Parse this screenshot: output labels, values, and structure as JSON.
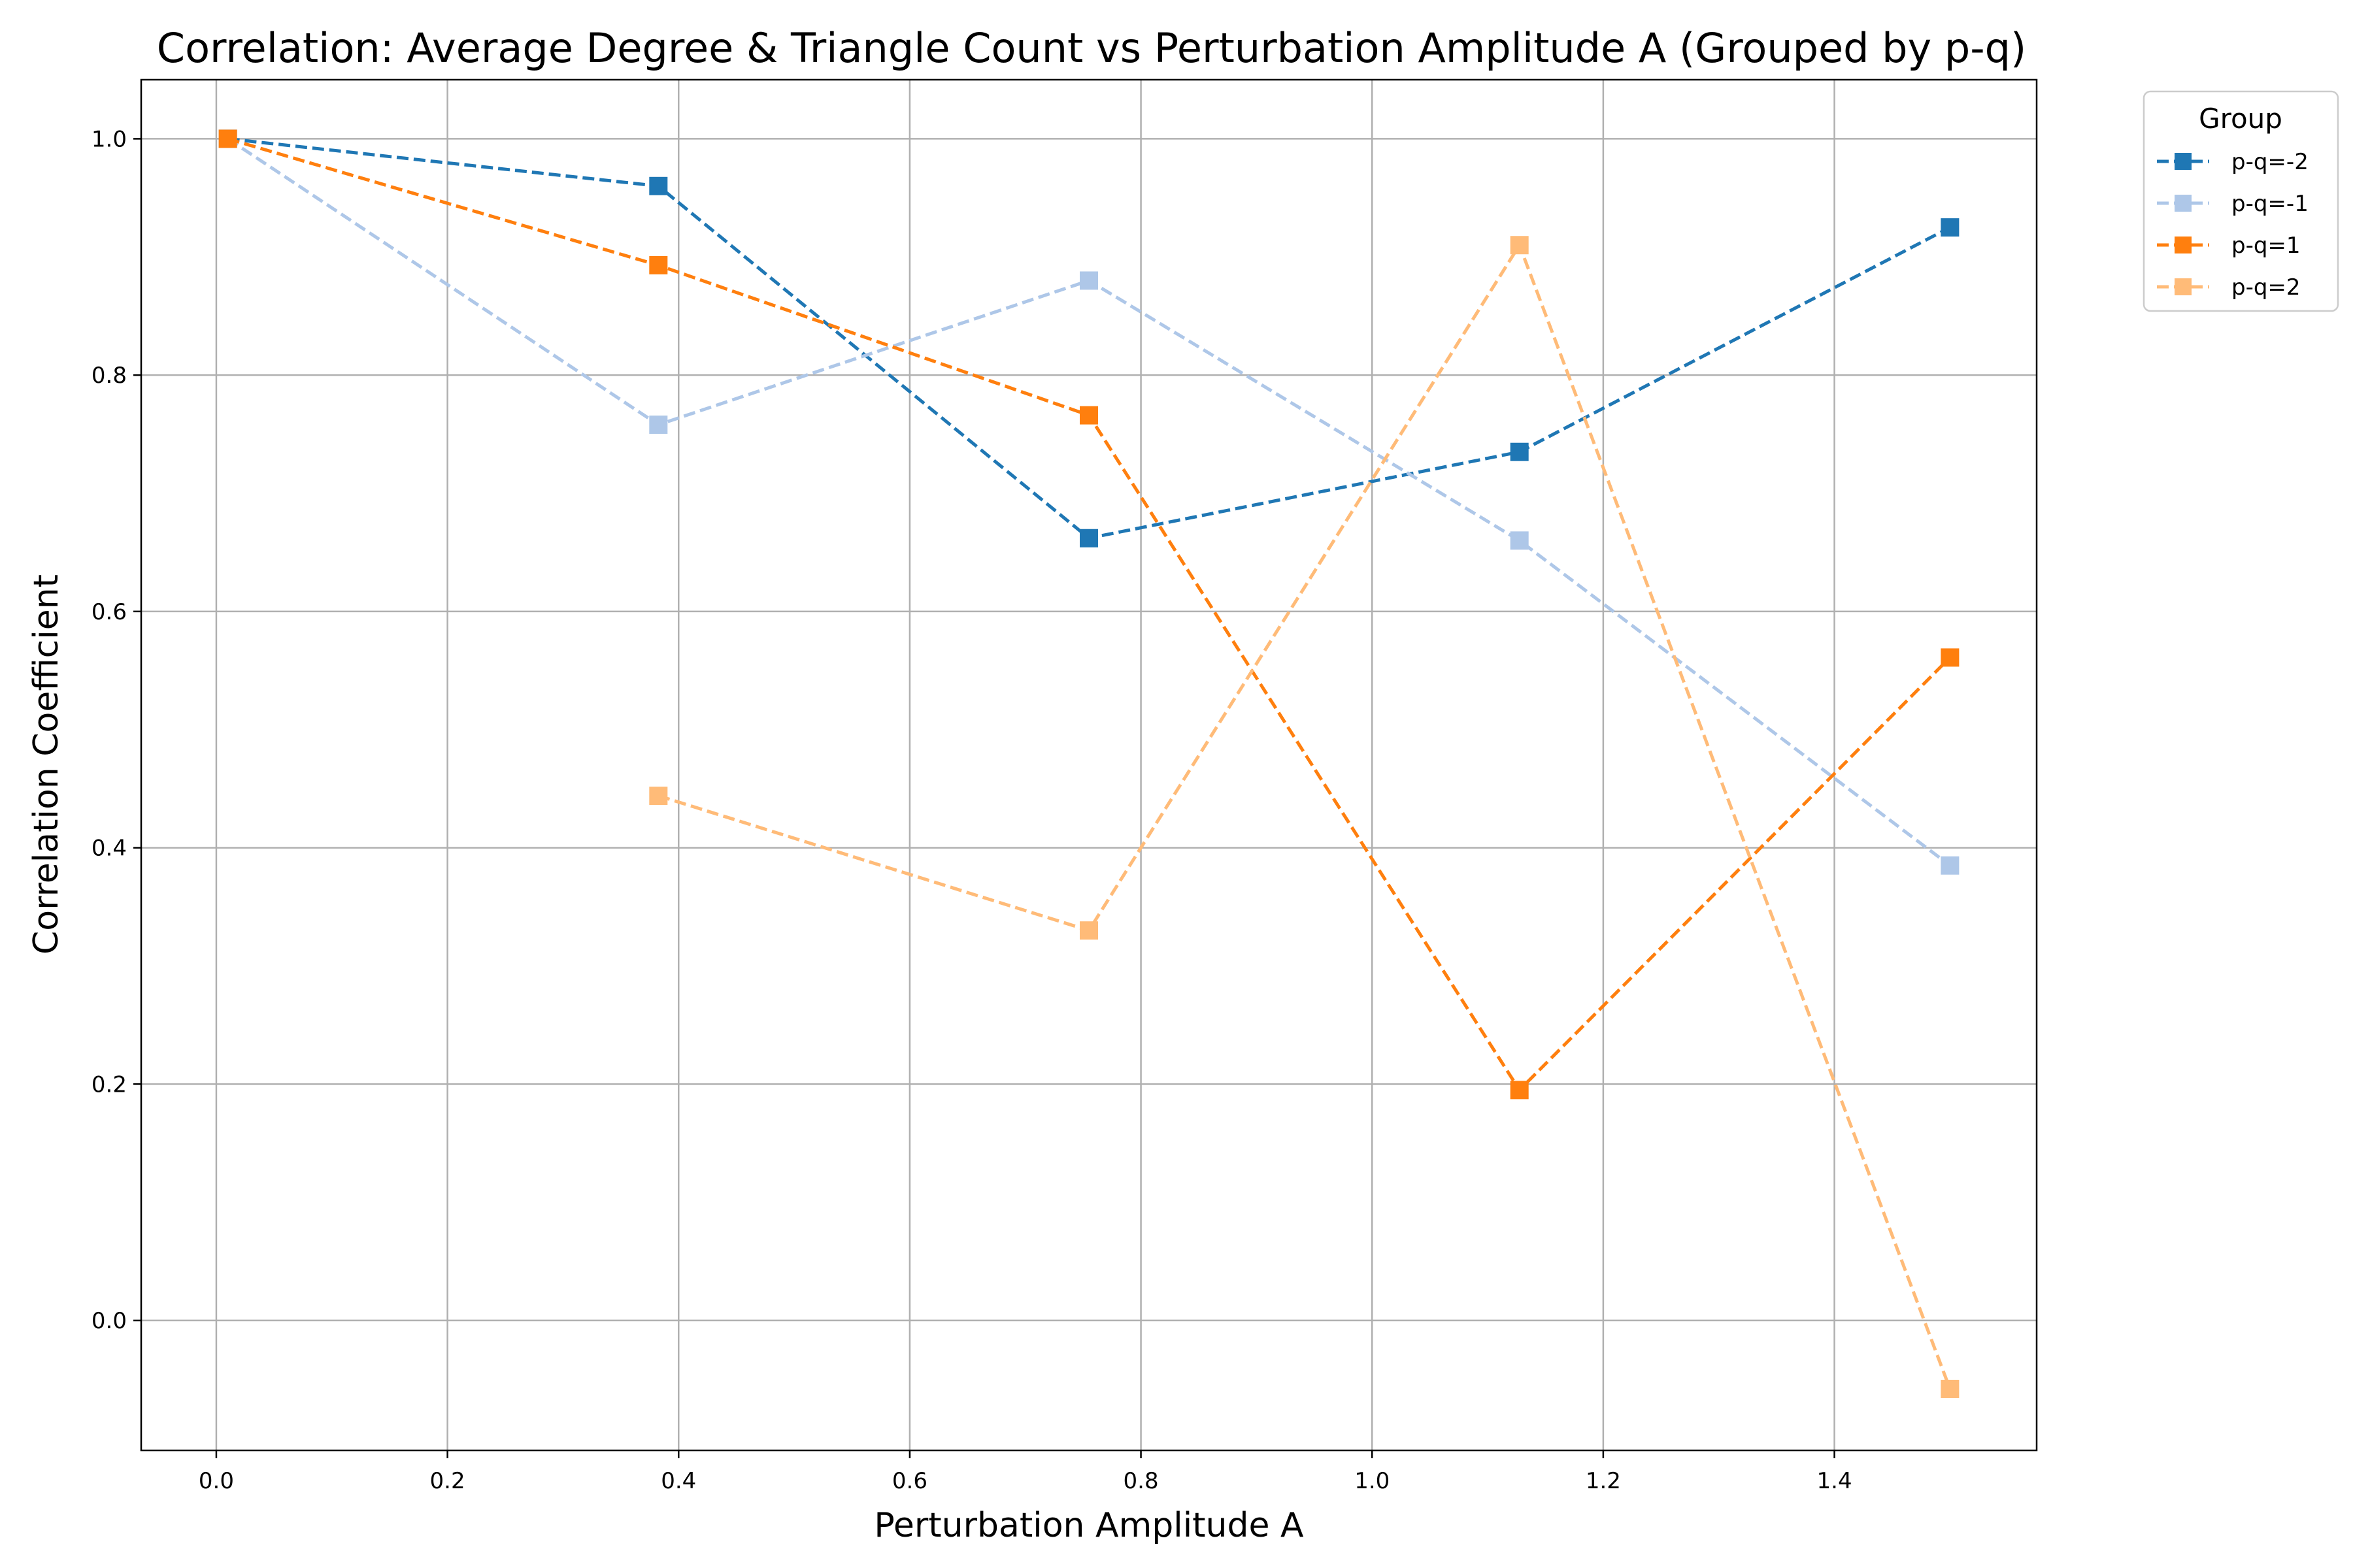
{
  "chart_data": {
    "type": "line",
    "title": "Correlation: Average Degree & Triangle Count vs Perturbation Amplitude A (Grouped by p-q)",
    "xlabel": "Perturbation Amplitude A",
    "ylabel": "Correlation Coefficient",
    "xlim": [
      -0.065,
      1.575
    ],
    "ylim": [
      -0.11,
      1.05
    ],
    "xticks": [
      0.0,
      0.2,
      0.4,
      0.6,
      0.8,
      1.0,
      1.2,
      1.4
    ],
    "xtick_labels": [
      "0.0",
      "0.2",
      "0.4",
      "0.6",
      "0.8",
      "1.0",
      "1.2",
      "1.4"
    ],
    "yticks": [
      0.0,
      0.2,
      0.4,
      0.6,
      0.8,
      1.0
    ],
    "ytick_labels": [
      "0.0",
      "0.2",
      "0.4",
      "0.6",
      "0.8",
      "1.0"
    ],
    "grid": true,
    "line_style": "dashed",
    "marker": "square",
    "legend": {
      "title": "Group",
      "placement": "outside-top-right"
    },
    "series": [
      {
        "name": "p-q=-2",
        "color": "#1f77b4",
        "x": [
          0.01,
          0.3825,
          0.755,
          1.1275,
          1.5
        ],
        "y": [
          1.0,
          0.96,
          0.662,
          0.735,
          0.925
        ]
      },
      {
        "name": "p-q=-1",
        "color": "#aec7e8",
        "x": [
          0.01,
          0.3825,
          0.755,
          1.1275,
          1.5
        ],
        "y": [
          1.0,
          0.758,
          0.88,
          0.66,
          0.385
        ]
      },
      {
        "name": "p-q=1",
        "color": "#ff7f0e",
        "x": [
          0.01,
          0.3825,
          0.755,
          1.1275,
          1.5
        ],
        "y": [
          1.0,
          0.893,
          0.766,
          0.195,
          0.561
        ]
      },
      {
        "name": "p-q=2",
        "color": "#ffbb78",
        "x": [
          0.3825,
          0.755,
          1.1275,
          1.5
        ],
        "y": [
          0.444,
          0.33,
          0.91,
          -0.058
        ]
      }
    ]
  }
}
